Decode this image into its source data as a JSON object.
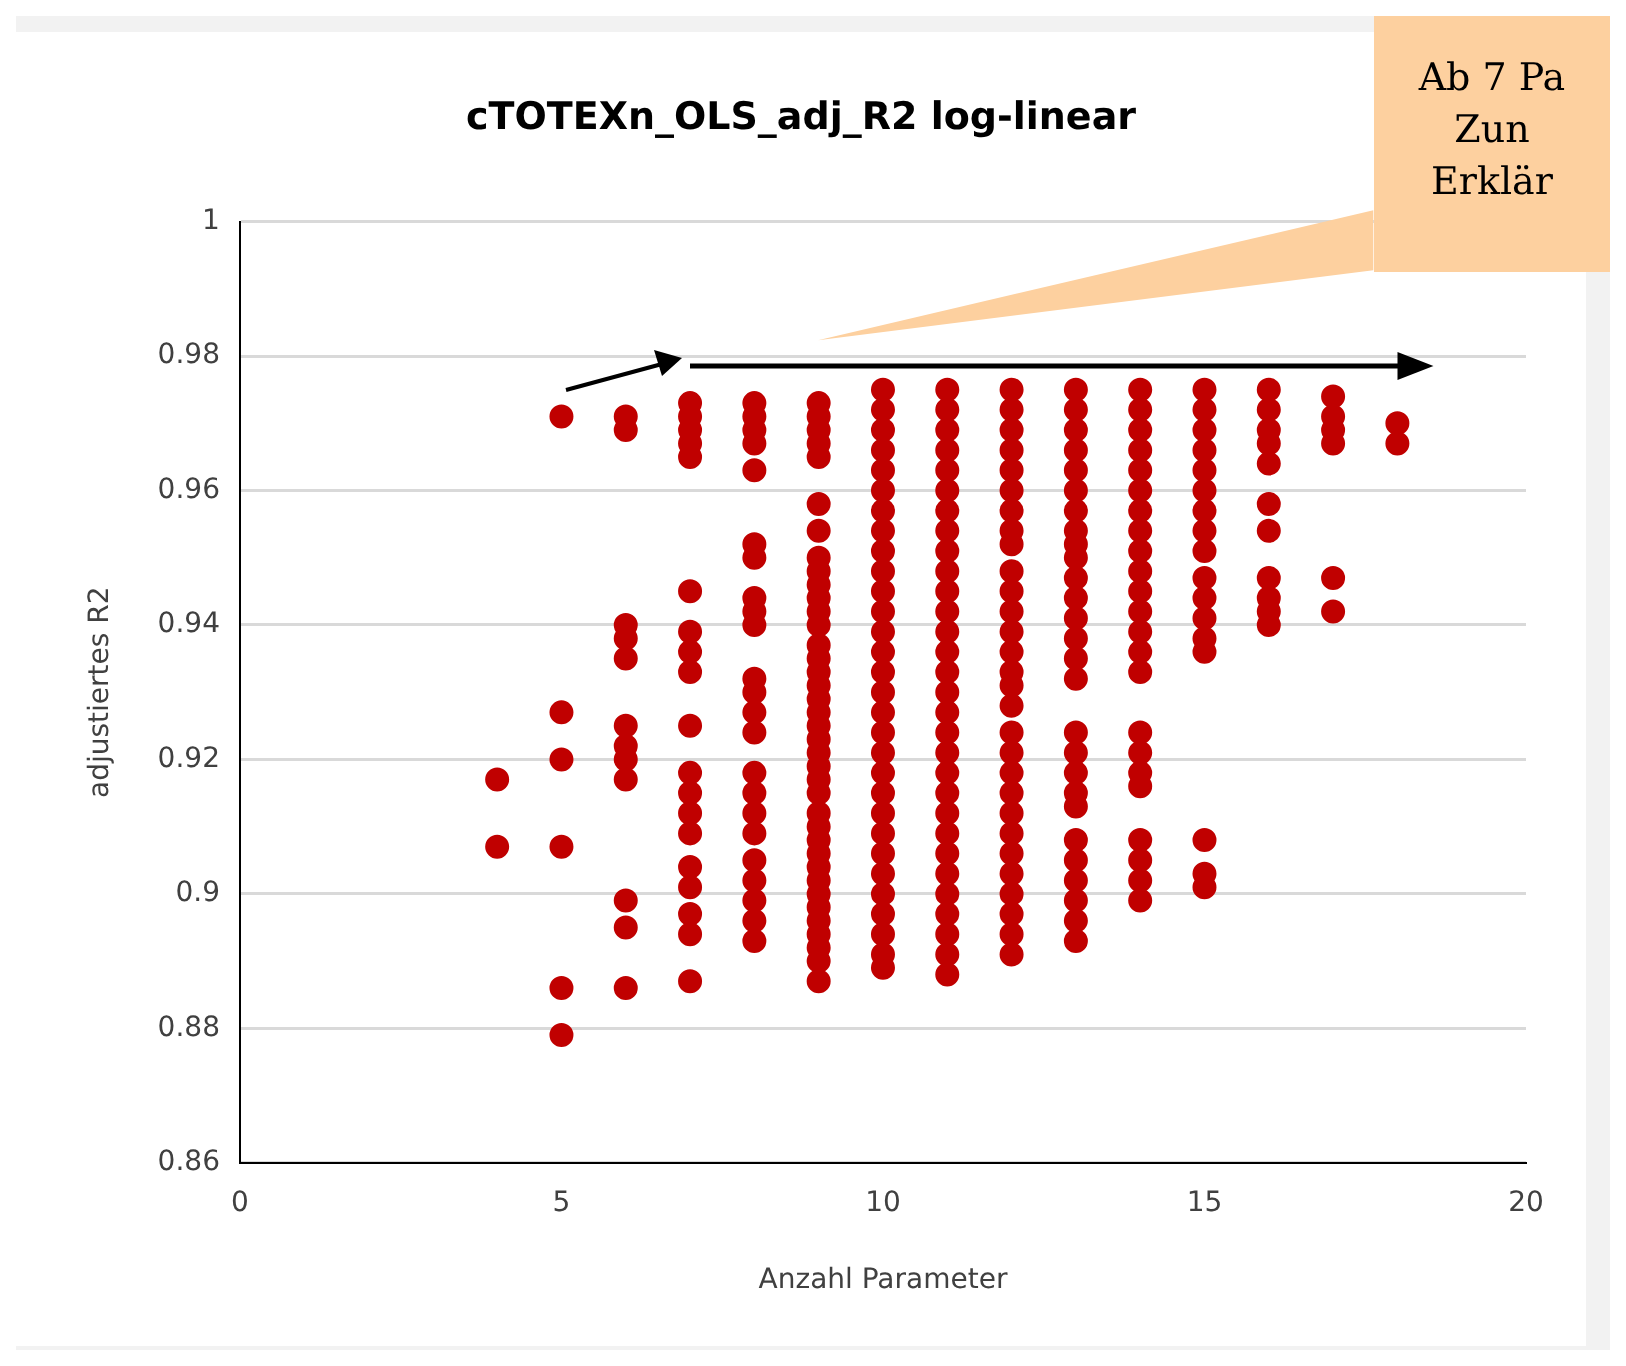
{
  "chart_data": {
    "type": "scatter",
    "title": "cTOTEXn_OLS_adj_R2 log-linear",
    "xlabel": "Anzahl Parameter",
    "ylabel": "adjustiertes R2",
    "annotations": [
      "Ab 7 Pa\nZun\nErklär"
    ],
    "xlim": [
      0,
      20
    ],
    "xticks": [
      0,
      5,
      10,
      15,
      20
    ],
    "ylim": [
      0.86,
      1
    ],
    "yticks": [
      0.86,
      0.88,
      0.9,
      0.92,
      0.94,
      0.96,
      0.98,
      1
    ],
    "grid": "y",
    "legend": false,
    "marker": "circle",
    "series": [
      {
        "color": "#c00000",
        "x": [
          4,
          4
        ],
        "values": [
          0.917,
          0.907
        ]
      },
      {
        "color": "#c00000",
        "x": [
          5,
          5,
          5,
          5,
          5,
          5
        ],
        "values": [
          0.971,
          0.927,
          0.92,
          0.907,
          0.886,
          0.879
        ]
      },
      {
        "color": "#c00000",
        "x": [
          6,
          6,
          6,
          6,
          6,
          6,
          6,
          6,
          6,
          6,
          6,
          6
        ],
        "values": [
          0.971,
          0.969,
          0.94,
          0.938,
          0.935,
          0.925,
          0.922,
          0.92,
          0.917,
          0.899,
          0.895,
          0.886
        ]
      },
      {
        "color": "#c00000",
        "x": [
          7,
          7,
          7,
          7,
          7,
          7,
          7,
          7,
          7,
          7,
          7,
          7,
          7,
          7,
          7,
          7,
          7,
          7,
          7
        ],
        "values": [
          0.973,
          0.971,
          0.969,
          0.967,
          0.965,
          0.945,
          0.939,
          0.936,
          0.933,
          0.925,
          0.918,
          0.915,
          0.912,
          0.909,
          0.904,
          0.901,
          0.897,
          0.894,
          0.887
        ]
      },
      {
        "color": "#c00000",
        "x": [
          8,
          8,
          8,
          8,
          8,
          8,
          8,
          8,
          8,
          8,
          8,
          8,
          8,
          8,
          8,
          8,
          8,
          8,
          8,
          8,
          8,
          8,
          8
        ],
        "values": [
          0.973,
          0.971,
          0.969,
          0.967,
          0.963,
          0.952,
          0.95,
          0.944,
          0.942,
          0.94,
          0.932,
          0.93,
          0.927,
          0.924,
          0.918,
          0.915,
          0.912,
          0.909,
          0.905,
          0.902,
          0.899,
          0.896,
          0.893
        ]
      },
      {
        "color": "#c00000",
        "x": [
          9,
          9,
          9,
          9,
          9,
          9,
          9,
          9,
          9,
          9,
          9,
          9,
          9,
          9,
          9,
          9,
          9,
          9,
          9,
          9,
          9,
          9,
          9,
          9,
          9,
          9,
          9,
          9,
          9,
          9,
          9,
          9,
          9,
          9,
          9,
          9,
          9,
          9
        ],
        "values": [
          0.973,
          0.971,
          0.969,
          0.967,
          0.965,
          0.958,
          0.954,
          0.95,
          0.948,
          0.946,
          0.944,
          0.942,
          0.94,
          0.937,
          0.935,
          0.933,
          0.931,
          0.929,
          0.927,
          0.925,
          0.923,
          0.921,
          0.919,
          0.917,
          0.915,
          0.912,
          0.91,
          0.908,
          0.906,
          0.904,
          0.902,
          0.9,
          0.898,
          0.896,
          0.894,
          0.892,
          0.89,
          0.887
        ]
      },
      {
        "color": "#c00000",
        "x": [
          10,
          10,
          10,
          10,
          10,
          10,
          10,
          10,
          10,
          10,
          10,
          10,
          10,
          10,
          10,
          10,
          10,
          10,
          10,
          10,
          10,
          10,
          10,
          10,
          10,
          10,
          10,
          10,
          10,
          10
        ],
        "values": [
          0.975,
          0.972,
          0.969,
          0.966,
          0.963,
          0.96,
          0.957,
          0.954,
          0.951,
          0.948,
          0.945,
          0.942,
          0.939,
          0.936,
          0.933,
          0.93,
          0.927,
          0.924,
          0.921,
          0.918,
          0.915,
          0.912,
          0.909,
          0.906,
          0.903,
          0.9,
          0.897,
          0.894,
          0.891,
          0.889
        ]
      },
      {
        "color": "#c00000",
        "x": [
          11,
          11,
          11,
          11,
          11,
          11,
          11,
          11,
          11,
          11,
          11,
          11,
          11,
          11,
          11,
          11,
          11,
          11,
          11,
          11,
          11,
          11,
          11,
          11,
          11,
          11,
          11,
          11,
          11,
          11
        ],
        "values": [
          0.975,
          0.972,
          0.969,
          0.966,
          0.963,
          0.96,
          0.957,
          0.954,
          0.951,
          0.948,
          0.945,
          0.942,
          0.939,
          0.936,
          0.933,
          0.93,
          0.927,
          0.924,
          0.921,
          0.918,
          0.915,
          0.912,
          0.909,
          0.906,
          0.903,
          0.9,
          0.897,
          0.894,
          0.891,
          0.888
        ]
      },
      {
        "color": "#c00000",
        "x": [
          12,
          12,
          12,
          12,
          12,
          12,
          12,
          12,
          12,
          12,
          12,
          12,
          12,
          12,
          12,
          12,
          12,
          12,
          12,
          12,
          12,
          12,
          12,
          12,
          12,
          12,
          12,
          12,
          12
        ],
        "values": [
          0.975,
          0.972,
          0.969,
          0.966,
          0.963,
          0.96,
          0.957,
          0.954,
          0.952,
          0.948,
          0.945,
          0.942,
          0.939,
          0.936,
          0.933,
          0.931,
          0.928,
          0.924,
          0.921,
          0.918,
          0.915,
          0.912,
          0.909,
          0.906,
          0.903,
          0.9,
          0.897,
          0.894,
          0.891
        ]
      },
      {
        "color": "#c00000",
        "x": [
          13,
          13,
          13,
          13,
          13,
          13,
          13,
          13,
          13,
          13,
          13,
          13,
          13,
          13,
          13,
          13,
          13,
          13,
          13,
          13,
          13,
          13,
          13,
          13,
          13,
          13,
          13
        ],
        "values": [
          0.975,
          0.972,
          0.969,
          0.966,
          0.963,
          0.96,
          0.957,
          0.954,
          0.952,
          0.95,
          0.947,
          0.944,
          0.941,
          0.938,
          0.935,
          0.932,
          0.924,
          0.921,
          0.918,
          0.915,
          0.913,
          0.908,
          0.905,
          0.902,
          0.899,
          0.896,
          0.893
        ]
      },
      {
        "color": "#c00000",
        "x": [
          14,
          14,
          14,
          14,
          14,
          14,
          14,
          14,
          14,
          14,
          14,
          14,
          14,
          14,
          14,
          14,
          14,
          14,
          14,
          14,
          14,
          14,
          14
        ],
        "values": [
          0.975,
          0.972,
          0.969,
          0.966,
          0.963,
          0.96,
          0.957,
          0.954,
          0.951,
          0.948,
          0.945,
          0.942,
          0.939,
          0.936,
          0.933,
          0.924,
          0.921,
          0.918,
          0.916,
          0.908,
          0.905,
          0.902,
          0.899
        ]
      },
      {
        "color": "#c00000",
        "x": [
          15,
          15,
          15,
          15,
          15,
          15,
          15,
          15,
          15,
          15,
          15,
          15,
          15,
          15,
          15,
          15,
          15
        ],
        "values": [
          0.975,
          0.972,
          0.969,
          0.966,
          0.963,
          0.96,
          0.957,
          0.954,
          0.951,
          0.947,
          0.944,
          0.941,
          0.938,
          0.936,
          0.908,
          0.903,
          0.901
        ]
      },
      {
        "color": "#c00000",
        "x": [
          16,
          16,
          16,
          16,
          16,
          16,
          16,
          16,
          16,
          16,
          16
        ],
        "values": [
          0.975,
          0.972,
          0.969,
          0.967,
          0.964,
          0.958,
          0.954,
          0.947,
          0.944,
          0.942,
          0.94
        ]
      },
      {
        "color": "#c00000",
        "x": [
          17,
          17,
          17,
          17,
          17,
          17
        ],
        "values": [
          0.974,
          0.971,
          0.969,
          0.967,
          0.947,
          0.942
        ]
      },
      {
        "color": "#c00000",
        "x": [
          18,
          18
        ],
        "values": [
          0.97,
          0.967
        ]
      }
    ]
  }
}
